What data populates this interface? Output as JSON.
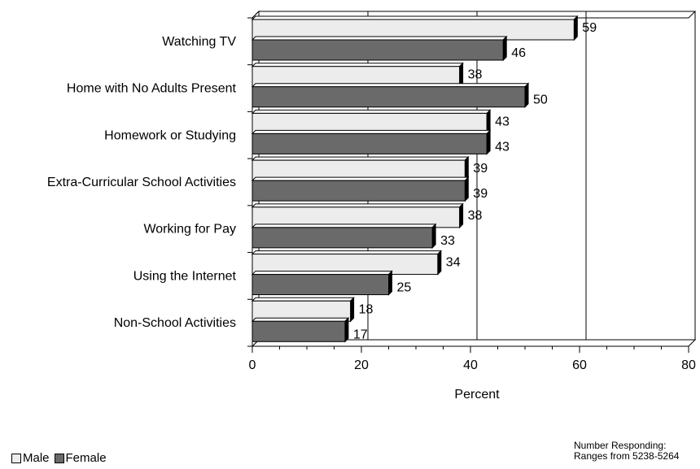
{
  "colors": {
    "male": "#ececec",
    "female": "#6a6a6a",
    "edge": "#000000"
  },
  "chart_data": {
    "type": "bar",
    "orientation": "horizontal",
    "categories": [
      "Watching TV",
      "Home with No Adults Present",
      "Homework or Studying",
      "Extra-Curricular School Activities",
      "Working for Pay",
      "Using the Internet",
      "Non-School Activities"
    ],
    "series": [
      {
        "name": "Male",
        "values": [
          59,
          38,
          43,
          39,
          38,
          34,
          18
        ]
      },
      {
        "name": "Female",
        "values": [
          46,
          50,
          43,
          39,
          33,
          25,
          17
        ]
      }
    ],
    "xlabel": "Percent",
    "xlim": [
      0,
      80
    ],
    "xticks": [
      0,
      20,
      40,
      60,
      80
    ],
    "grid": true,
    "legend_position": "bottom-left"
  },
  "legend": {
    "male": "Male",
    "female": "Female"
  },
  "note": {
    "line1": "Number Responding:",
    "line2": "Ranges from 5238-5264"
  }
}
